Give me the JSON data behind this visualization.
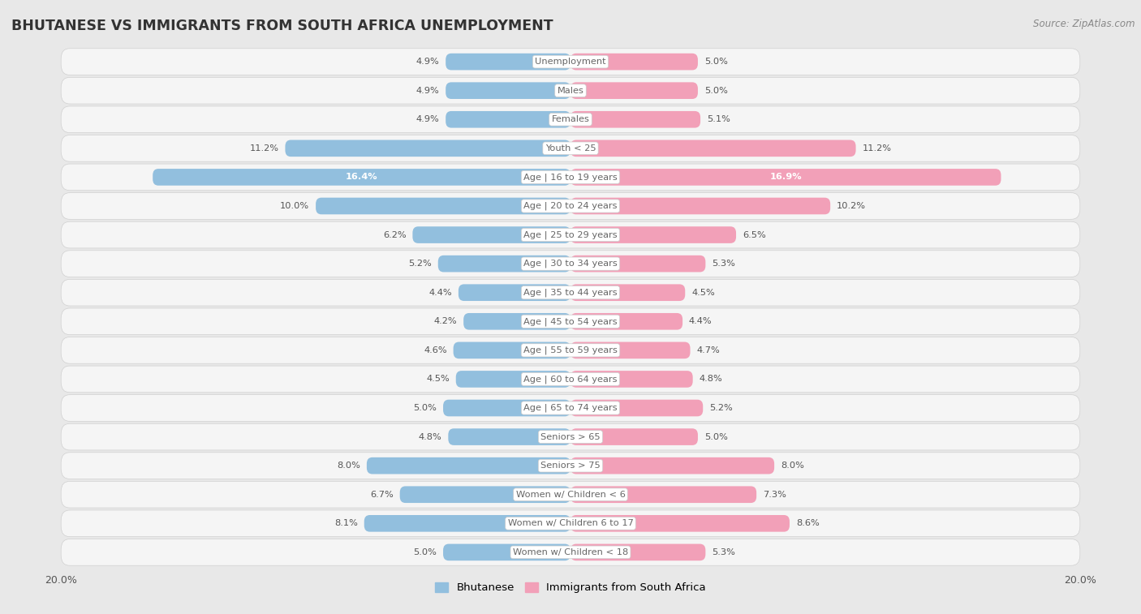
{
  "title": "BHUTANESE VS IMMIGRANTS FROM SOUTH AFRICA UNEMPLOYMENT",
  "source": "Source: ZipAtlas.com",
  "categories": [
    "Unemployment",
    "Males",
    "Females",
    "Youth < 25",
    "Age | 16 to 19 years",
    "Age | 20 to 24 years",
    "Age | 25 to 29 years",
    "Age | 30 to 34 years",
    "Age | 35 to 44 years",
    "Age | 45 to 54 years",
    "Age | 55 to 59 years",
    "Age | 60 to 64 years",
    "Age | 65 to 74 years",
    "Seniors > 65",
    "Seniors > 75",
    "Women w/ Children < 6",
    "Women w/ Children 6 to 17",
    "Women w/ Children < 18"
  ],
  "bhutanese": [
    4.9,
    4.9,
    4.9,
    11.2,
    16.4,
    10.0,
    6.2,
    5.2,
    4.4,
    4.2,
    4.6,
    4.5,
    5.0,
    4.8,
    8.0,
    6.7,
    8.1,
    5.0
  ],
  "south_africa": [
    5.0,
    5.0,
    5.1,
    11.2,
    16.9,
    10.2,
    6.5,
    5.3,
    4.5,
    4.4,
    4.7,
    4.8,
    5.2,
    5.0,
    8.0,
    7.3,
    8.6,
    5.3
  ],
  "bhutanese_color": "#92bfde",
  "south_africa_color": "#f2a0b8",
  "axis_max": 20.0,
  "background_color": "#e8e8e8",
  "row_bg_color": "#f5f5f5",
  "row_border_color": "#d0d0d0",
  "legend_bhutanese": "Bhutanese",
  "legend_south_africa": "Immigrants from South Africa",
  "title_color": "#333333",
  "label_color": "#666666",
  "value_color": "#555555"
}
